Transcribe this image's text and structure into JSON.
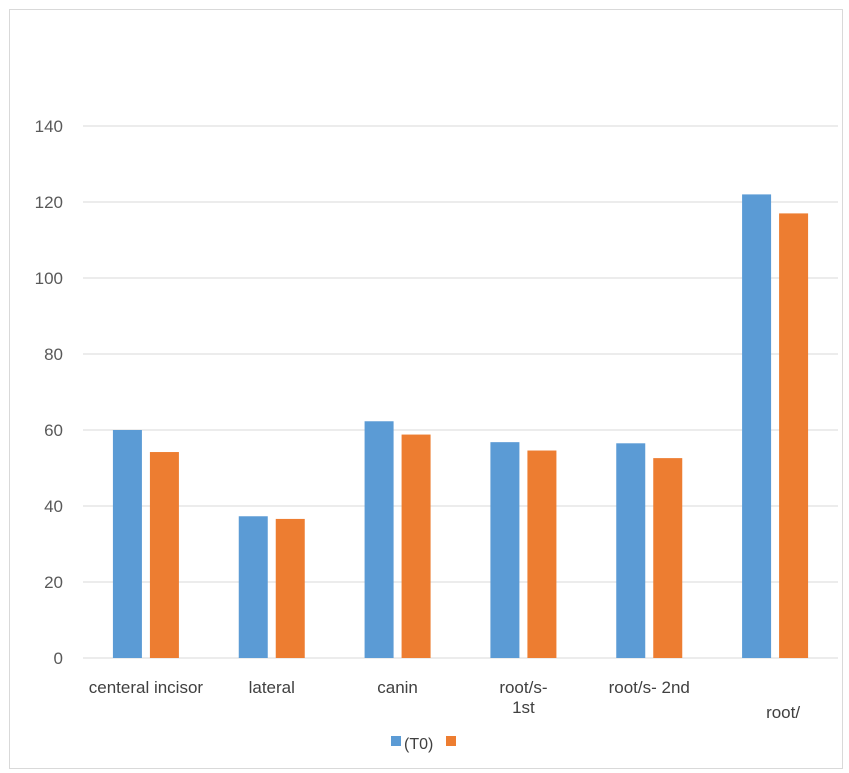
{
  "chart_data": {
    "type": "bar",
    "categories": [
      [
        "centeral incisor"
      ],
      [
        "lateral"
      ],
      [
        "canin"
      ],
      [
        "root/s-",
        "1st"
      ],
      [
        "root/s- 2nd"
      ],
      [
        "root/"
      ]
    ],
    "series": [
      {
        "name": "(T0)",
        "color": "#5b9bd5",
        "values": [
          60,
          37.3,
          62.3,
          56.8,
          56.5,
          122
        ]
      },
      {
        "name": "",
        "color": "#ed7d31",
        "values": [
          54.2,
          36.6,
          58.8,
          54.6,
          52.6,
          117
        ]
      }
    ],
    "ylim": [
      0,
      140
    ],
    "yticks": [
      0,
      20,
      40,
      60,
      80,
      100,
      120,
      140
    ],
    "grid": true,
    "legend": "bottom",
    "axis_color": "#d9d9d9"
  }
}
